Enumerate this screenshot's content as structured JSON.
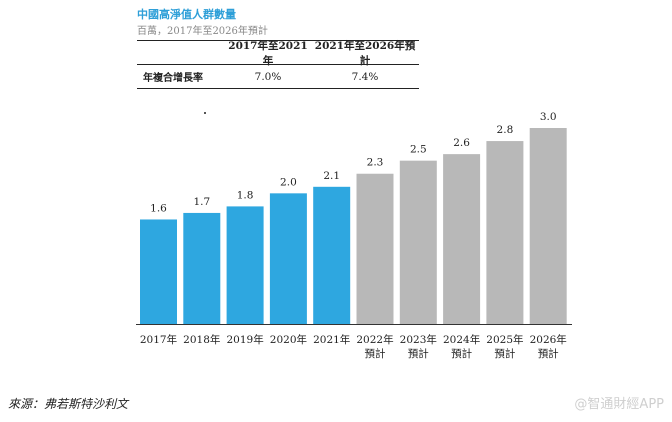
{
  "header": {
    "title": "中國高淨值人群數量",
    "subtitle": "百萬，2017年至2026年預計"
  },
  "cagr_table": {
    "col1": "2017年至2021年",
    "col2": "2021年至2026年預計",
    "row_label": "年複合增長率",
    "val1": "7.0%",
    "val2": "7.4%"
  },
  "chart_data": {
    "type": "bar",
    "categories": [
      "2017年",
      "2018年",
      "2019年",
      "2020年",
      "2021年",
      "2022年\n預計",
      "2023年\n預計",
      "2024年\n預計",
      "2025年\n預計",
      "2026年\n預計"
    ],
    "values": [
      1.6,
      1.7,
      1.8,
      2.0,
      2.1,
      2.3,
      2.5,
      2.6,
      2.8,
      3.0
    ],
    "value_labels": [
      "1.6",
      "1.7",
      "1.8",
      "2.0",
      "2.1",
      "2.3",
      "2.5",
      "2.6",
      "2.8",
      "3.0"
    ],
    "ylim": [
      0,
      3.0
    ],
    "grid": false,
    "colors": {
      "actual": "#2ea7e0",
      "forecast": "#b8b8b8"
    },
    "forecast_start_index": 5
  },
  "footer": {
    "source": "來源：弗若斯特沙利文",
    "watermark": "@智通財經APP"
  }
}
